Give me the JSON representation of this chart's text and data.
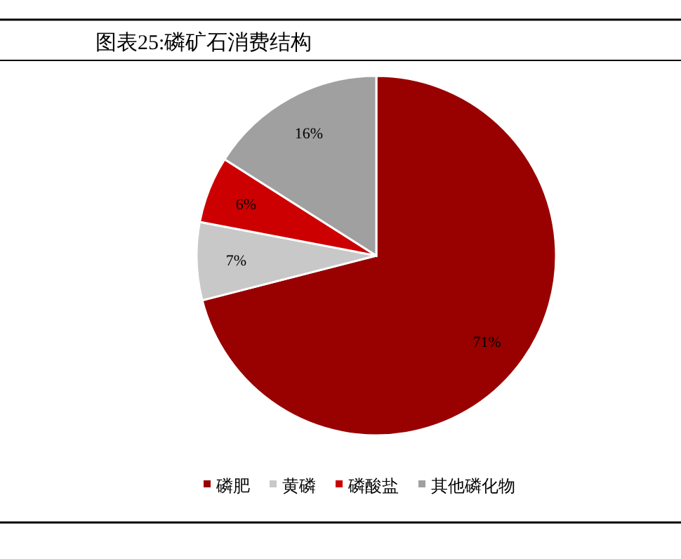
{
  "chart_data": {
    "type": "pie",
    "title": "图表25:磷矿石消费结构",
    "categories": [
      "磷肥",
      "黄磷",
      "磷酸盐",
      "其他磷化物"
    ],
    "values": [
      71,
      7,
      6,
      16
    ],
    "colors": [
      "#990000",
      "#c8c8c8",
      "#cc0000",
      "#a0a0a0"
    ],
    "value_labels": [
      "71%",
      "7%",
      "6%",
      "16%"
    ],
    "legend": "bottom"
  }
}
